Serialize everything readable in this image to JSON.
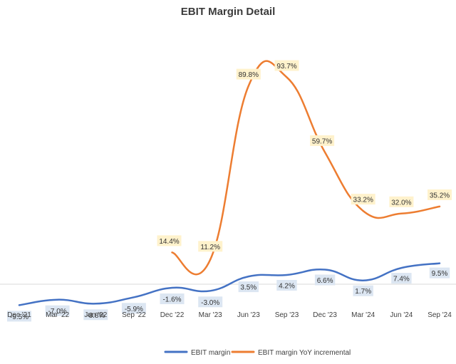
{
  "chart_data": {
    "type": "line",
    "title": "EBIT Margin Detail",
    "xlabel": "",
    "ylabel": "",
    "categories": [
      "Dec '21",
      "Mar '22",
      "Jun '22",
      "Sep '22",
      "Dec '22",
      "Mar '23",
      "Jun '23",
      "Sep '23",
      "Dec '23",
      "Mar '24",
      "Jun '24",
      "Sep '24"
    ],
    "ylim": [
      -15,
      100
    ],
    "grid": false,
    "legend_position": "bottom",
    "series": [
      {
        "name": "EBIT margin",
        "color": "#4472c4",
        "label_bg": "#dce6f2",
        "values": [
          -9.5,
          -7.0,
          -8.8,
          -5.9,
          -1.6,
          -3.0,
          3.5,
          4.2,
          6.6,
          1.7,
          7.4,
          9.5
        ],
        "labels": [
          "-9.5%",
          "-7.0%",
          "-8.8%",
          "-5.9%",
          "-1.6%",
          "-3.0%",
          "3.5%",
          "4.2%",
          "6.6%",
          "1.7%",
          "7.4%",
          "9.5%"
        ]
      },
      {
        "name": "EBIT margin YoY incremental",
        "color": "#ed7d31",
        "label_bg": "#fff2cc",
        "values": [
          null,
          null,
          null,
          null,
          14.4,
          11.2,
          89.8,
          93.7,
          59.7,
          33.2,
          32.0,
          35.2
        ],
        "labels": [
          null,
          null,
          null,
          null,
          "14.4%",
          "11.2%",
          "89.8%",
          "93.7%",
          "59.7%",
          "33.2%",
          "32.0%",
          "35.2%"
        ]
      }
    ]
  }
}
